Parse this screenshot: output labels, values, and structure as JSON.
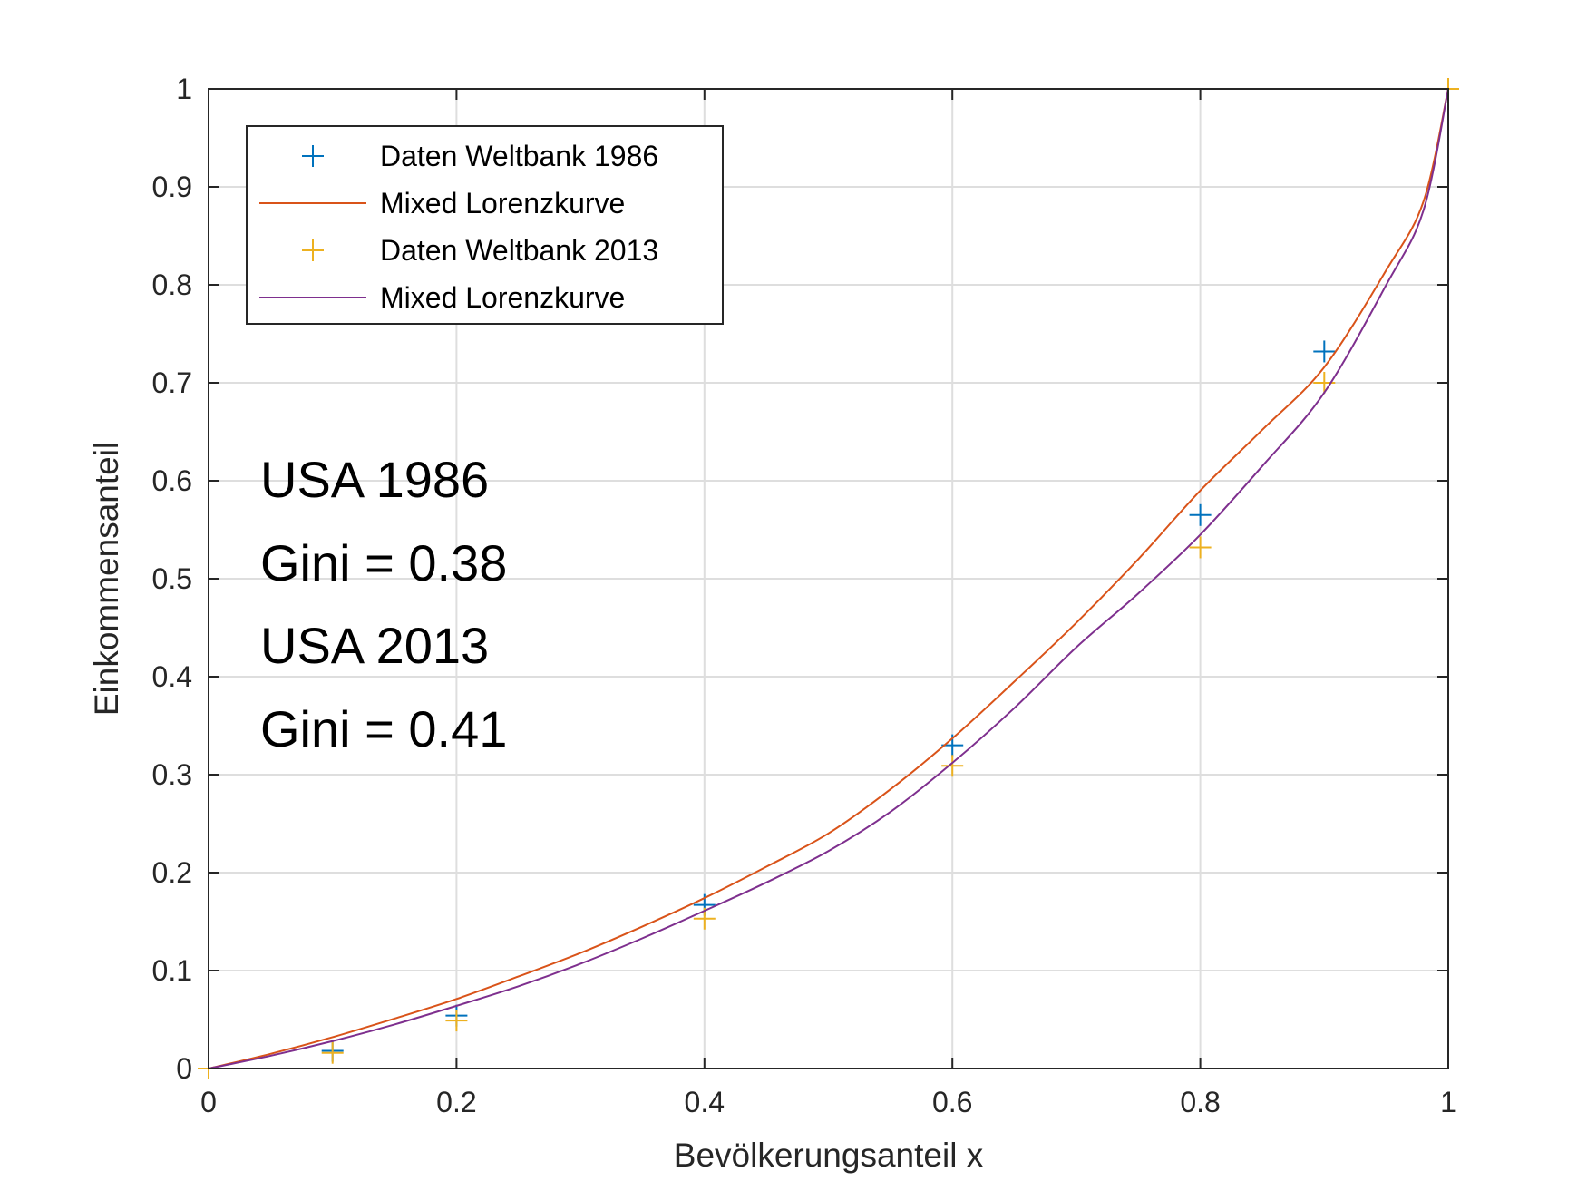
{
  "chart_data": {
    "type": "line",
    "xlabel": "Bevölkerungsanteil x",
    "ylabel": "Einkommensanteil",
    "xlim": [
      0,
      1
    ],
    "ylim": [
      0,
      1
    ],
    "grid": true,
    "legend_position": "top-left",
    "x_ticks": [
      "0",
      "0.2",
      "0.4",
      "0.6",
      "0.8",
      "1"
    ],
    "y_ticks": [
      "0",
      "0.1",
      "0.2",
      "0.3",
      "0.4",
      "0.5",
      "0.6",
      "0.7",
      "0.8",
      "0.9",
      "1"
    ],
    "series": [
      {
        "name": "Daten Weltbank 1986",
        "kind": "marker",
        "marker": "plus",
        "color": "#0072BD",
        "x": [
          0,
          0.1,
          0.2,
          0.4,
          0.6,
          0.8,
          0.9,
          1
        ],
        "y": [
          0,
          0.018,
          0.054,
          0.167,
          0.33,
          0.565,
          0.732,
          1
        ]
      },
      {
        "name": "Mixed Lorenzkurve",
        "kind": "line",
        "color": "#D95319",
        "x": [
          0,
          0.05,
          0.1,
          0.15,
          0.2,
          0.25,
          0.3,
          0.35,
          0.4,
          0.45,
          0.5,
          0.55,
          0.6,
          0.65,
          0.7,
          0.75,
          0.8,
          0.85,
          0.9,
          0.95,
          0.98,
          1
        ],
        "y": [
          0,
          0.015,
          0.032,
          0.051,
          0.071,
          0.094,
          0.118,
          0.145,
          0.174,
          0.206,
          0.24,
          0.285,
          0.337,
          0.395,
          0.455,
          0.52,
          0.59,
          0.652,
          0.716,
          0.815,
          0.885,
          1
        ]
      },
      {
        "name": "Daten Weltbank 2013",
        "kind": "marker",
        "marker": "plus",
        "color": "#EDB120",
        "x": [
          0,
          0.1,
          0.2,
          0.4,
          0.6,
          0.8,
          0.9,
          1
        ],
        "y": [
          0,
          0.016,
          0.049,
          0.153,
          0.309,
          0.532,
          0.7,
          1
        ]
      },
      {
        "name": "Mixed Lorenzkurve",
        "kind": "line",
        "color": "#7E2F8E",
        "x": [
          0,
          0.05,
          0.1,
          0.15,
          0.2,
          0.25,
          0.3,
          0.35,
          0.4,
          0.45,
          0.5,
          0.55,
          0.6,
          0.65,
          0.7,
          0.75,
          0.8,
          0.85,
          0.9,
          0.95,
          0.98,
          1
        ],
        "y": [
          0,
          0.013,
          0.028,
          0.045,
          0.064,
          0.084,
          0.107,
          0.133,
          0.161,
          0.19,
          0.222,
          0.262,
          0.312,
          0.368,
          0.43,
          0.485,
          0.545,
          0.615,
          0.69,
          0.8,
          0.876,
          1
        ]
      }
    ],
    "annotations": [
      "USA 1986",
      "Gini = 0.38",
      "USA 2013",
      "Gini = 0.41"
    ]
  }
}
